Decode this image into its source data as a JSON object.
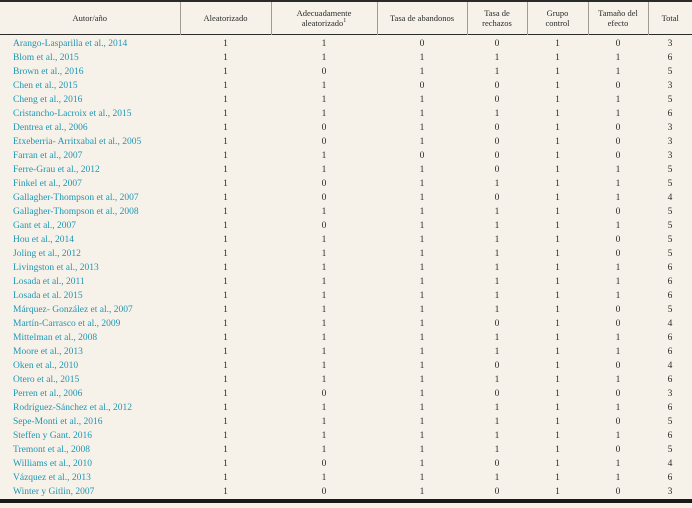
{
  "colors": {
    "background": "#F7F2E9",
    "author_link": "#1E96B4",
    "text": "#2B2B2B",
    "border": "#1A1A1A"
  },
  "table": {
    "headers": [
      {
        "label": "Autor/año",
        "sup": ""
      },
      {
        "label": "Aleatorizado",
        "sup": ""
      },
      {
        "label": "Adecuadamente aleatorizado",
        "sup": "1"
      },
      {
        "label": "Tasa de abandonos",
        "sup": ""
      },
      {
        "label": "Tasa de\nrechazos",
        "sup": ""
      },
      {
        "label": "Grupo\ncontrol",
        "sup": ""
      },
      {
        "label": "Tamaño del\nefecto",
        "sup": ""
      },
      {
        "label": "Total",
        "sup": ""
      }
    ],
    "rows": [
      {
        "author": "Arango-Lasparilla et al., 2014",
        "values": [
          1,
          1,
          0,
          0,
          1,
          0,
          3
        ]
      },
      {
        "author": "Blom et al., 2015",
        "values": [
          1,
          1,
          1,
          1,
          1,
          1,
          6
        ]
      },
      {
        "author": "Brown et al., 2016",
        "values": [
          1,
          0,
          1,
          1,
          1,
          1,
          5
        ]
      },
      {
        "author": "Chen et al., 2015",
        "values": [
          1,
          1,
          0,
          0,
          1,
          0,
          3
        ]
      },
      {
        "author": "Cheng et al., 2016",
        "values": [
          1,
          1,
          1,
          0,
          1,
          1,
          5
        ]
      },
      {
        "author": "Cristancho-Lacroix et al., 2015",
        "values": [
          1,
          1,
          1,
          1,
          1,
          1,
          6
        ]
      },
      {
        "author": "Dentrea et al., 2006",
        "values": [
          1,
          0,
          1,
          0,
          1,
          0,
          3
        ]
      },
      {
        "author": "Etxeberria- Arritxabal et al., 2005",
        "values": [
          1,
          0,
          1,
          0,
          1,
          0,
          3
        ]
      },
      {
        "author": "Farran et al., 2007",
        "values": [
          1,
          1,
          0,
          0,
          1,
          0,
          3
        ]
      },
      {
        "author": "Ferre-Grau et al., 2012",
        "values": [
          1,
          1,
          1,
          0,
          1,
          1,
          5
        ]
      },
      {
        "author": "Finkel et al., 2007",
        "values": [
          1,
          0,
          1,
          1,
          1,
          1,
          5
        ]
      },
      {
        "author": "Gallagher-Thompson et al., 2007",
        "values": [
          1,
          0,
          1,
          0,
          1,
          1,
          4
        ]
      },
      {
        "author": "Gallagher-Thompson et al., 2008",
        "values": [
          1,
          1,
          1,
          1,
          1,
          0,
          5
        ]
      },
      {
        "author": "Gant et al., 2007",
        "values": [
          1,
          0,
          1,
          1,
          1,
          1,
          5
        ]
      },
      {
        "author": "Hou et al., 2014",
        "values": [
          1,
          1,
          1,
          1,
          1,
          0,
          5
        ]
      },
      {
        "author": "Joling et al., 2012",
        "values": [
          1,
          1,
          1,
          1,
          1,
          0,
          5
        ]
      },
      {
        "author": "Livingston et al., 2013",
        "values": [
          1,
          1,
          1,
          1,
          1,
          1,
          6
        ]
      },
      {
        "author": "Losada et al., 2011",
        "values": [
          1,
          1,
          1,
          1,
          1,
          1,
          6
        ]
      },
      {
        "author": "Losada et al. 2015",
        "values": [
          1,
          1,
          1,
          1,
          1,
          1,
          6
        ]
      },
      {
        "author": "Márquez- González et al., 2007",
        "values": [
          1,
          1,
          1,
          1,
          1,
          0,
          5
        ]
      },
      {
        "author": "Martín-Carrasco et al., 2009",
        "values": [
          1,
          1,
          1,
          0,
          1,
          0,
          4
        ]
      },
      {
        "author": "Mittelman et al., 2008",
        "values": [
          1,
          1,
          1,
          1,
          1,
          1,
          6
        ]
      },
      {
        "author": "Moore et al., 2013",
        "values": [
          1,
          1,
          1,
          1,
          1,
          1,
          6
        ]
      },
      {
        "author": "Oken et al., 2010",
        "values": [
          1,
          1,
          1,
          0,
          1,
          0,
          4
        ]
      },
      {
        "author": "Otero et al., 2015",
        "values": [
          1,
          1,
          1,
          1,
          1,
          1,
          6
        ]
      },
      {
        "author": "Perren et al., 2006",
        "values": [
          1,
          0,
          1,
          0,
          1,
          0,
          3
        ]
      },
      {
        "author": "Rodríguez-Sánchez et al., 2012",
        "values": [
          1,
          1,
          1,
          1,
          1,
          1,
          6
        ]
      },
      {
        "author": "Sepe-Monti et al., 2016",
        "values": [
          1,
          1,
          1,
          1,
          1,
          0,
          5
        ]
      },
      {
        "author": "Steffen y Gant. 2016",
        "values": [
          1,
          1,
          1,
          1,
          1,
          1,
          6
        ]
      },
      {
        "author": "Tremont et al., 2008",
        "values": [
          1,
          1,
          1,
          1,
          1,
          0,
          5
        ]
      },
      {
        "author": "Williams et al., 2010",
        "values": [
          1,
          0,
          1,
          0,
          1,
          1,
          4
        ]
      },
      {
        "author": "Vázquez et al., 2013",
        "values": [
          1,
          1,
          1,
          1,
          1,
          1,
          6
        ]
      },
      {
        "author": "Winter y Gitlin, 2007",
        "values": [
          1,
          0,
          1,
          0,
          1,
          0,
          3
        ]
      }
    ]
  }
}
